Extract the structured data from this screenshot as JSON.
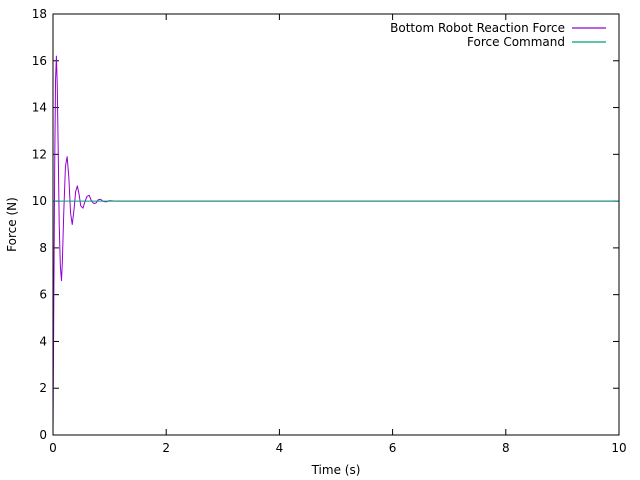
{
  "chart_data": {
    "type": "line",
    "title": "",
    "xlabel": "Time (s)",
    "ylabel": "Force (N)",
    "xlim": [
      0,
      10
    ],
    "ylim": [
      0,
      18
    ],
    "xticks": [
      0,
      2,
      4,
      6,
      8,
      10
    ],
    "yticks": [
      0,
      2,
      4,
      6,
      8,
      10,
      12,
      14,
      16,
      18
    ],
    "grid": false,
    "legend_position": "top-right",
    "series": [
      {
        "name": "Bottom Robot Reaction Force",
        "color": "#9400d3",
        "x": [
          0,
          0.015,
          0.03,
          0.045,
          0.06,
          0.075,
          0.09,
          0.11,
          0.13,
          0.15,
          0.165,
          0.19,
          0.22,
          0.25,
          0.28,
          0.31,
          0.34,
          0.37,
          0.4,
          0.43,
          0.46,
          0.49,
          0.53,
          0.56,
          0.6,
          0.64,
          0.68,
          0.72,
          0.76,
          0.8,
          0.84,
          0.88,
          0.92,
          0.96,
          1.0,
          1.05,
          1.1,
          1.2,
          2.0,
          4.0,
          6.0,
          8.0,
          10.0
        ],
        "y": [
          0,
          6.0,
          11.5,
          15.2,
          16.2,
          15.0,
          12.5,
          9.0,
          7.2,
          6.6,
          7.4,
          9.5,
          11.5,
          11.9,
          11.0,
          9.5,
          9.0,
          9.6,
          10.4,
          10.65,
          10.3,
          9.8,
          9.7,
          9.95,
          10.2,
          10.25,
          10.0,
          9.9,
          9.92,
          10.06,
          10.08,
          10.0,
          9.97,
          9.98,
          10.02,
          10.01,
          10.0,
          10.0,
          10.0,
          10.0,
          10.0,
          10.0,
          10.0
        ]
      },
      {
        "name": "Force Command",
        "color": "#009e73",
        "x": [
          0,
          0.001,
          10.0
        ],
        "y": [
          0,
          10,
          10
        ]
      }
    ]
  }
}
